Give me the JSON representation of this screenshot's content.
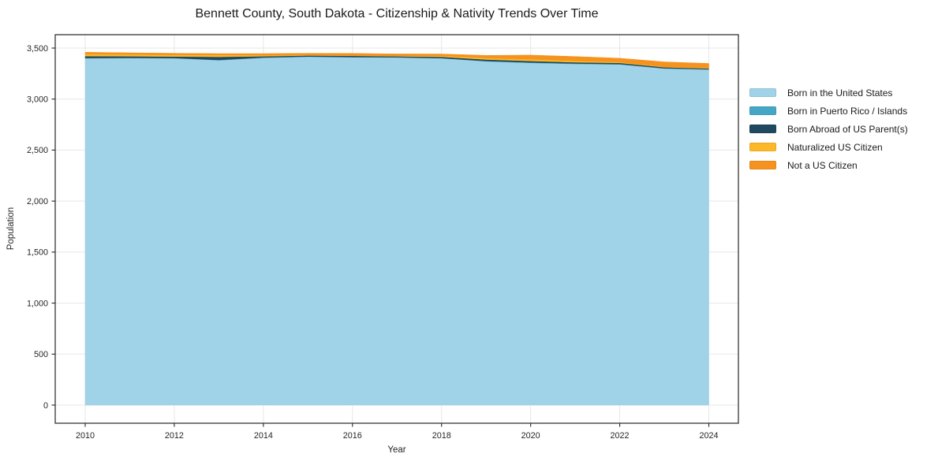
{
  "chart_data": {
    "type": "area",
    "stacked": true,
    "title": "Bennett County, South Dakota - Citizenship & Nativity Trends Over Time",
    "xlabel": "Year",
    "ylabel": "Population",
    "grid": true,
    "legend_position": "center-right-outside",
    "x": [
      2010,
      2011,
      2012,
      2013,
      2014,
      2015,
      2016,
      2017,
      2018,
      2019,
      2020,
      2021,
      2022,
      2023,
      2024
    ],
    "series": [
      {
        "name": "Born in the United States",
        "color": "#a0d2e8",
        "values": [
          3400,
          3402,
          3400,
          3380,
          3405,
          3415,
          3410,
          3408,
          3400,
          3370,
          3355,
          3345,
          3340,
          3300,
          3290
        ]
      },
      {
        "name": "Born in Puerto Rico / Islands",
        "color": "#45a6c6",
        "values": [
          3,
          3,
          3,
          4,
          3,
          2,
          2,
          2,
          2,
          3,
          4,
          4,
          3,
          2,
          2
        ]
      },
      {
        "name": "Born Abroad of US Parent(s)",
        "color": "#20485e",
        "values": [
          18,
          15,
          14,
          30,
          12,
          10,
          12,
          10,
          12,
          15,
          14,
          12,
          12,
          10,
          8
        ]
      },
      {
        "name": "Naturalized US Citizen",
        "color": "#fcb826",
        "values": [
          20,
          18,
          16,
          18,
          10,
          6,
          4,
          5,
          10,
          15,
          18,
          14,
          8,
          5,
          4
        ]
      },
      {
        "name": "Not a US Citizen",
        "color": "#f6921e",
        "values": [
          18,
          16,
          16,
          14,
          16,
          16,
          20,
          18,
          18,
          25,
          40,
          42,
          37,
          48,
          45
        ]
      }
    ],
    "x_ticks": {
      "values": [
        2010,
        2012,
        2014,
        2016,
        2018,
        2020,
        2022,
        2024
      ],
      "labels": [
        "2010",
        "2012",
        "2014",
        "2016",
        "2018",
        "2020",
        "2022",
        "2024"
      ]
    },
    "y_ticks": {
      "values": [
        0,
        500,
        1000,
        1500,
        2000,
        2500,
        3000,
        3500
      ],
      "labels": [
        "0",
        "500",
        "1,000",
        "1,500",
        "2,000",
        "2,500",
        "3,000",
        "3,500"
      ]
    },
    "xlim": [
      2010,
      2024
    ],
    "ylim": [
      0,
      3500
    ],
    "colors": {
      "grid": "#e7e7e7",
      "spine": "#262626",
      "tick": "#262626",
      "background": "#ffffff"
    }
  }
}
